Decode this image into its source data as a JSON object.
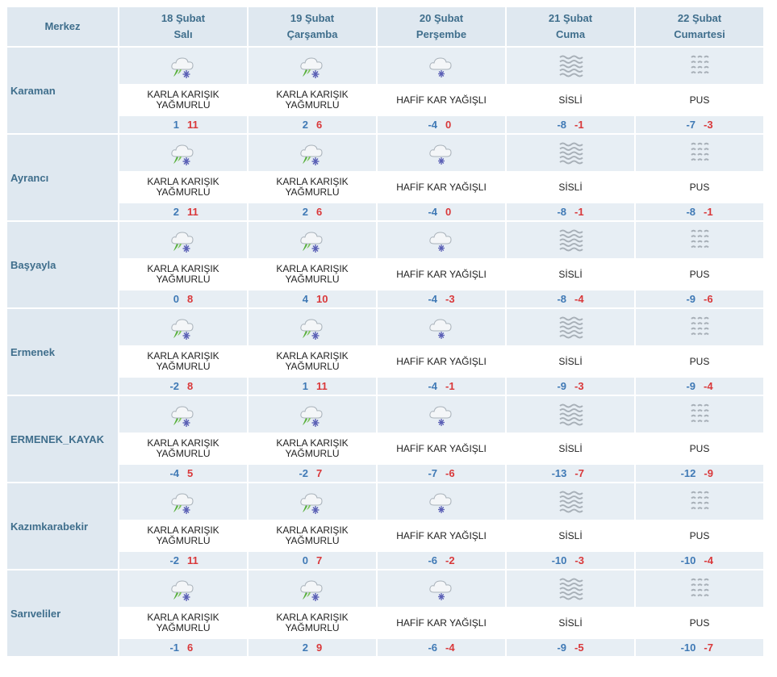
{
  "header": {
    "center_label": "Merkez",
    "days": [
      {
        "date": "18 Şubat",
        "weekday": "Salı"
      },
      {
        "date": "19 Şubat",
        "weekday": "Çarşamba"
      },
      {
        "date": "20 Şubat",
        "weekday": "Perşembe"
      },
      {
        "date": "21 Şubat",
        "weekday": "Cuma"
      },
      {
        "date": "22 Şubat",
        "weekday": "Cumartesi"
      }
    ]
  },
  "colors": {
    "min_temp": "#3f79b5",
    "max_temp": "#d9383a",
    "header_text": "#3f6e8c",
    "cell_bg": "#e7eef4"
  },
  "rows": [
    {
      "name": "Karaman",
      "forecasts": [
        {
          "icon": "sleet-icon",
          "desc": [
            "KARLA KARIŞIK",
            "YAĞMURLU"
          ],
          "min": "1",
          "max": "11"
        },
        {
          "icon": "sleet-icon",
          "desc": [
            "KARLA KARIŞIK",
            "YAĞMURLU"
          ],
          "min": "2",
          "max": "6"
        },
        {
          "icon": "light-snow-icon",
          "desc": [
            "HAFİF KAR YAĞIŞLI"
          ],
          "min": "-4",
          "max": "0"
        },
        {
          "icon": "fog-icon",
          "desc": [
            "SİSLİ"
          ],
          "min": "-8",
          "max": "-1"
        },
        {
          "icon": "haze-icon",
          "desc": [
            "PUS"
          ],
          "min": "-7",
          "max": "-3"
        }
      ]
    },
    {
      "name": "Ayrancı",
      "forecasts": [
        {
          "icon": "sleet-icon",
          "desc": [
            "KARLA KARIŞIK",
            "YAĞMURLU"
          ],
          "min": "2",
          "max": "11"
        },
        {
          "icon": "sleet-icon",
          "desc": [
            "KARLA KARIŞIK",
            "YAĞMURLU"
          ],
          "min": "2",
          "max": "6"
        },
        {
          "icon": "light-snow-icon",
          "desc": [
            "HAFİF KAR YAĞIŞLI"
          ],
          "min": "-4",
          "max": "0"
        },
        {
          "icon": "fog-icon",
          "desc": [
            "SİSLİ"
          ],
          "min": "-8",
          "max": "-1"
        },
        {
          "icon": "haze-icon",
          "desc": [
            "PUS"
          ],
          "min": "-8",
          "max": "-1"
        }
      ]
    },
    {
      "name": "Başyayla",
      "forecasts": [
        {
          "icon": "sleet-icon",
          "desc": [
            "KARLA KARIŞIK",
            "YAĞMURLU"
          ],
          "min": "0",
          "max": "8"
        },
        {
          "icon": "sleet-icon",
          "desc": [
            "KARLA KARIŞIK",
            "YAĞMURLU"
          ],
          "min": "4",
          "max": "10"
        },
        {
          "icon": "light-snow-icon",
          "desc": [
            "HAFİF KAR YAĞIŞLI"
          ],
          "min": "-4",
          "max": "-3"
        },
        {
          "icon": "fog-icon",
          "desc": [
            "SİSLİ"
          ],
          "min": "-8",
          "max": "-4"
        },
        {
          "icon": "haze-icon",
          "desc": [
            "PUS"
          ],
          "min": "-9",
          "max": "-6"
        }
      ]
    },
    {
      "name": "Ermenek",
      "forecasts": [
        {
          "icon": "sleet-icon",
          "desc": [
            "KARLA KARIŞIK",
            "YAĞMURLU"
          ],
          "min": "-2",
          "max": "8"
        },
        {
          "icon": "sleet-icon",
          "desc": [
            "KARLA KARIŞIK",
            "YAĞMURLU"
          ],
          "min": "1",
          "max": "11"
        },
        {
          "icon": "light-snow-icon",
          "desc": [
            "HAFİF KAR YAĞIŞLI"
          ],
          "min": "-4",
          "max": "-1"
        },
        {
          "icon": "fog-icon",
          "desc": [
            "SİSLİ"
          ],
          "min": "-9",
          "max": "-3"
        },
        {
          "icon": "haze-icon",
          "desc": [
            "PUS"
          ],
          "min": "-9",
          "max": "-4"
        }
      ]
    },
    {
      "name": "ERMENEK_KAYAK",
      "forecasts": [
        {
          "icon": "sleet-icon",
          "desc": [
            "KARLA KARIŞIK",
            "YAĞMURLU"
          ],
          "min": "-4",
          "max": "5"
        },
        {
          "icon": "sleet-icon",
          "desc": [
            "KARLA KARIŞIK",
            "YAĞMURLU"
          ],
          "min": "-2",
          "max": "7"
        },
        {
          "icon": "light-snow-icon",
          "desc": [
            "HAFİF KAR YAĞIŞLI"
          ],
          "min": "-7",
          "max": "-6"
        },
        {
          "icon": "fog-icon",
          "desc": [
            "SİSLİ"
          ],
          "min": "-13",
          "max": "-7"
        },
        {
          "icon": "haze-icon",
          "desc": [
            "PUS"
          ],
          "min": "-12",
          "max": "-9"
        }
      ]
    },
    {
      "name": "Kazımkarabekir",
      "forecasts": [
        {
          "icon": "sleet-icon",
          "desc": [
            "KARLA KARIŞIK",
            "YAĞMURLU"
          ],
          "min": "-2",
          "max": "11"
        },
        {
          "icon": "sleet-icon",
          "desc": [
            "KARLA KARIŞIK",
            "YAĞMURLU"
          ],
          "min": "0",
          "max": "7"
        },
        {
          "icon": "light-snow-icon",
          "desc": [
            "HAFİF KAR YAĞIŞLI"
          ],
          "min": "-6",
          "max": "-2"
        },
        {
          "icon": "fog-icon",
          "desc": [
            "SİSLİ"
          ],
          "min": "-10",
          "max": "-3"
        },
        {
          "icon": "haze-icon",
          "desc": [
            "PUS"
          ],
          "min": "-10",
          "max": "-4"
        }
      ]
    },
    {
      "name": "Sarıveliler",
      "forecasts": [
        {
          "icon": "sleet-icon",
          "desc": [
            "KARLA KARIŞIK",
            "YAĞMURLU"
          ],
          "min": "-1",
          "max": "6"
        },
        {
          "icon": "sleet-icon",
          "desc": [
            "KARLA KARIŞIK",
            "YAĞMURLU"
          ],
          "min": "2",
          "max": "9"
        },
        {
          "icon": "light-snow-icon",
          "desc": [
            "HAFİF KAR YAĞIŞLI"
          ],
          "min": "-6",
          "max": "-4"
        },
        {
          "icon": "fog-icon",
          "desc": [
            "SİSLİ"
          ],
          "min": "-9",
          "max": "-5"
        },
        {
          "icon": "haze-icon",
          "desc": [
            "PUS"
          ],
          "min": "-10",
          "max": "-7"
        }
      ]
    }
  ]
}
